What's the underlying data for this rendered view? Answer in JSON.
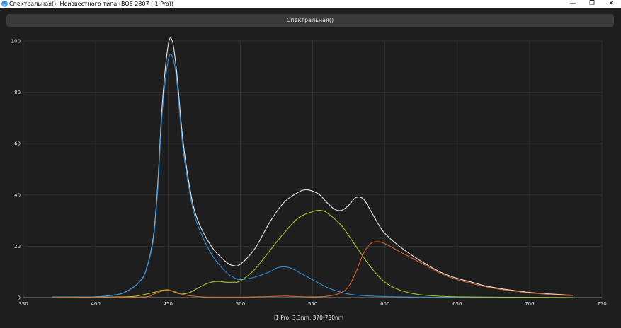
{
  "window": {
    "title": "Спектральная(): Неизвестного типа (BOE 2807 (i1 Pro))",
    "minimize": "—",
    "maximize": "❐",
    "close": "✕"
  },
  "header": {
    "label": "Спектральная()"
  },
  "chart_data": {
    "type": "line",
    "xlabel": "i1 Pro, 3,3nm, 370-730nm",
    "ylabel": "",
    "xlim": [
      350,
      750
    ],
    "ylim": [
      0,
      100
    ],
    "xticks": [
      "350",
      "400",
      "450",
      "500",
      "550",
      "600",
      "650",
      "700",
      "750"
    ],
    "yticks": [
      "0",
      "20",
      "40",
      "60",
      "80",
      "100"
    ],
    "grid": true,
    "background": "#1e1e1e",
    "series": [
      {
        "color": "#e8e8e8",
        "x": [
          370,
          400,
          410,
          420,
          430,
          435,
          440,
          443,
          446,
          450,
          453,
          456,
          460,
          465,
          470,
          480,
          490,
          495,
          500,
          510,
          520,
          530,
          540,
          545,
          550,
          555,
          560,
          565,
          570,
          575,
          580,
          585,
          590,
          595,
          600,
          610,
          620,
          630,
          640,
          650,
          660,
          670,
          680,
          690,
          700,
          710,
          720,
          730
        ],
        "y": [
          0.2,
          0.3,
          0.8,
          2,
          6,
          11,
          24,
          45,
          75,
          98,
          100,
          88,
          63,
          43,
          31,
          20,
          14,
          12.5,
          13,
          19,
          29,
          37,
          41,
          42,
          41.5,
          40,
          37,
          34.5,
          34,
          36,
          39,
          38.5,
          34,
          29,
          25,
          20,
          16,
          12.5,
          9.5,
          7.5,
          6,
          4.5,
          3.5,
          2.7,
          2,
          1.6,
          1.2,
          0.9
        ]
      },
      {
        "color": "#2f8fd8",
        "x": [
          370,
          400,
          410,
          420,
          430,
          435,
          440,
          443,
          446,
          450,
          453,
          456,
          460,
          465,
          470,
          480,
          490,
          495,
          500,
          510,
          520,
          525,
          530,
          535,
          540,
          550,
          560,
          570,
          580,
          600,
          650,
          730
        ],
        "y": [
          0.2,
          0.3,
          0.8,
          2,
          6,
          11,
          23,
          43,
          72,
          92,
          94,
          85,
          60,
          41,
          29,
          17,
          10,
          8,
          7,
          8,
          10,
          11.5,
          12,
          11.5,
          10,
          7,
          4,
          2,
          1,
          0.4,
          0.1,
          0.05
        ]
      },
      {
        "color": "#a8c42a",
        "x": [
          370,
          420,
          430,
          440,
          445,
          450,
          453,
          456,
          460,
          465,
          470,
          475,
          480,
          485,
          490,
          495,
          500,
          510,
          520,
          530,
          540,
          550,
          555,
          560,
          570,
          580,
          590,
          600,
          610,
          620,
          630,
          650,
          700,
          730
        ],
        "y": [
          0,
          0.3,
          0.8,
          2,
          2.8,
          3,
          2.5,
          1.8,
          1.4,
          2,
          3.5,
          5,
          6,
          6.3,
          6,
          6,
          6.5,
          11,
          18,
          25,
          31,
          33.5,
          34,
          33,
          28,
          20,
          12,
          6,
          3,
          1.5,
          0.8,
          0.3,
          0.1,
          0
        ]
      },
      {
        "color": "#d4632a",
        "x": [
          370,
          430,
          440,
          445,
          450,
          455,
          460,
          470,
          480,
          500,
          520,
          530,
          540,
          550,
          560,
          570,
          575,
          580,
          585,
          590,
          595,
          600,
          610,
          620,
          630,
          640,
          650,
          660,
          670,
          680,
          690,
          700,
          710,
          720,
          730
        ],
        "y": [
          0,
          0.2,
          1.3,
          2.4,
          2.8,
          2.3,
          1.2,
          0.4,
          0.2,
          0.2,
          0.4,
          0.6,
          0.4,
          0.3,
          0.5,
          2,
          4.5,
          10,
          17,
          21,
          21.8,
          21,
          18,
          15,
          12,
          9,
          7,
          5.5,
          4.2,
          3.2,
          2.5,
          1.8,
          1.4,
          1,
          0.8
        ]
      }
    ]
  }
}
